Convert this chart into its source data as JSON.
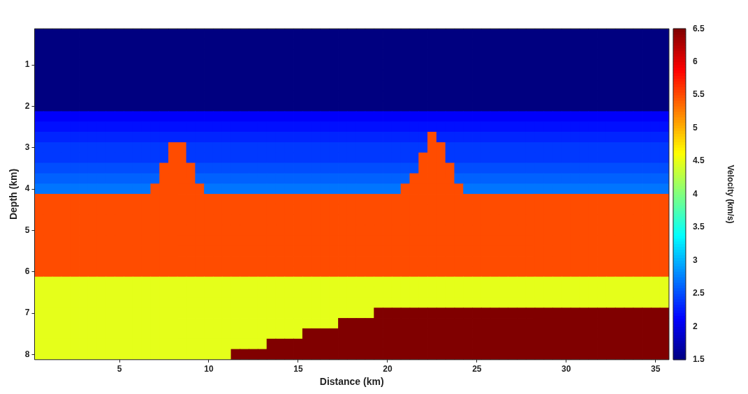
{
  "chart_data": {
    "type": "heatmap",
    "xlabel": "Distance (km)",
    "ylabel": "Depth (km)",
    "clabel": "Velocity (km/s)",
    "categories": [
      null,
      null,
      null,
      null,
      null,
      null,
      null,
      null,
      null,
      "5",
      null,
      null,
      null,
      null,
      null,
      null,
      null,
      null,
      null,
      "10",
      null,
      null,
      null,
      null,
      null,
      null,
      null,
      null,
      null,
      "15",
      null,
      null,
      null,
      null,
      null,
      null,
      null,
      null,
      null,
      "20",
      null,
      null,
      null,
      null,
      null,
      null,
      null,
      null,
      null,
      "25",
      null,
      null,
      null,
      null,
      null,
      null,
      null,
      null,
      null,
      "30",
      null,
      null,
      null,
      null,
      null,
      null,
      null,
      null,
      null,
      "35",
      null
    ],
    "y_categories": [
      null,
      null,
      null,
      "1",
      null,
      null,
      null,
      "2",
      null,
      null,
      null,
      "3",
      null,
      null,
      null,
      "4",
      null,
      null,
      null,
      "5",
      null,
      null,
      null,
      "6",
      null,
      null,
      null,
      "7",
      null,
      null,
      null,
      "8"
    ],
    "clim": [
      1.5,
      6.5
    ],
    "cticks": [
      1.5,
      2,
      2.5,
      3,
      3.5,
      4,
      4.5,
      5,
      5.5,
      6,
      6.5
    ],
    "cells": [
      [
        1.5,
        1.5,
        1.5,
        1.5,
        1.5,
        1.5,
        1.5,
        1.5,
        1.5,
        1.5,
        1.5,
        1.5,
        1.5,
        1.5,
        1.5,
        1.5,
        1.5,
        1.5,
        1.5,
        1.5,
        1.5,
        1.5,
        1.5,
        1.5,
        1.5,
        1.5,
        1.5,
        1.5,
        1.5,
        1.5,
        1.5,
        1.5,
        1.5,
        1.5,
        1.5,
        1.5,
        1.5,
        1.5,
        1.5,
        1.5,
        1.5,
        1.5,
        1.5,
        1.5,
        1.5,
        1.5,
        1.5,
        1.5,
        1.5,
        1.5,
        1.5,
        1.5,
        1.5,
        1.5,
        1.5,
        1.5,
        1.5,
        1.5,
        1.5,
        1.5,
        1.5,
        1.5,
        1.5,
        1.5,
        1.5,
        1.5,
        1.5,
        1.5,
        1.5,
        1.5,
        1.5
      ],
      [
        1.5,
        1.5,
        1.5,
        1.5,
        1.5,
        1.5,
        1.5,
        1.5,
        1.5,
        1.5,
        1.5,
        1.5,
        1.5,
        1.5,
        1.5,
        1.5,
        1.5,
        1.5,
        1.5,
        1.5,
        1.5,
        1.5,
        1.5,
        1.5,
        1.5,
        1.5,
        1.5,
        1.5,
        1.5,
        1.5,
        1.5,
        1.5,
        1.5,
        1.5,
        1.5,
        1.5,
        1.5,
        1.5,
        1.5,
        1.5,
        1.5,
        1.5,
        1.5,
        1.5,
        1.5,
        1.5,
        1.5,
        1.5,
        1.5,
        1.5,
        1.5,
        1.5,
        1.5,
        1.5,
        1.5,
        1.5,
        1.5,
        1.5,
        1.5,
        1.5,
        1.5,
        1.5,
        1.5,
        1.5,
        1.5,
        1.5,
        1.5,
        1.5,
        1.5,
        1.5,
        1.5
      ],
      [
        1.5,
        1.5,
        1.5,
        1.5,
        1.5,
        1.5,
        1.5,
        1.5,
        1.5,
        1.5,
        1.5,
        1.5,
        1.5,
        1.5,
        1.5,
        1.5,
        1.5,
        1.5,
        1.5,
        1.5,
        1.5,
        1.5,
        1.5,
        1.5,
        1.5,
        1.5,
        1.5,
        1.5,
        1.5,
        1.5,
        1.5,
        1.5,
        1.5,
        1.5,
        1.5,
        1.5,
        1.5,
        1.5,
        1.5,
        1.5,
        1.5,
        1.5,
        1.5,
        1.5,
        1.5,
        1.5,
        1.5,
        1.5,
        1.5,
        1.5,
        1.5,
        1.5,
        1.5,
        1.5,
        1.5,
        1.5,
        1.5,
        1.5,
        1.5,
        1.5,
        1.5,
        1.5,
        1.5,
        1.5,
        1.5,
        1.5,
        1.5,
        1.5,
        1.5,
        1.5,
        1.5
      ],
      [
        1.5,
        1.5,
        1.5,
        1.5,
        1.5,
        1.5,
        1.5,
        1.5,
        1.5,
        1.5,
        1.5,
        1.5,
        1.5,
        1.5,
        1.5,
        1.5,
        1.5,
        1.5,
        1.5,
        1.5,
        1.5,
        1.5,
        1.5,
        1.5,
        1.5,
        1.5,
        1.5,
        1.5,
        1.5,
        1.5,
        1.5,
        1.5,
        1.5,
        1.5,
        1.5,
        1.5,
        1.5,
        1.5,
        1.5,
        1.5,
        1.5,
        1.5,
        1.5,
        1.5,
        1.5,
        1.5,
        1.5,
        1.5,
        1.5,
        1.5,
        1.5,
        1.5,
        1.5,
        1.5,
        1.5,
        1.5,
        1.5,
        1.5,
        1.5,
        1.5,
        1.5,
        1.5,
        1.5,
        1.5,
        1.5,
        1.5,
        1.5,
        1.5,
        1.5,
        1.5,
        1.5
      ],
      [
        1.5,
        1.5,
        1.5,
        1.5,
        1.5,
        1.5,
        1.5,
        1.5,
        1.5,
        1.5,
        1.5,
        1.5,
        1.5,
        1.5,
        1.5,
        1.5,
        1.5,
        1.5,
        1.5,
        1.5,
        1.5,
        1.5,
        1.5,
        1.5,
        1.5,
        1.5,
        1.5,
        1.5,
        1.5,
        1.5,
        1.5,
        1.5,
        1.5,
        1.5,
        1.5,
        1.5,
        1.5,
        1.5,
        1.5,
        1.5,
        1.5,
        1.5,
        1.5,
        1.5,
        1.5,
        1.5,
        1.5,
        1.5,
        1.5,
        1.5,
        1.5,
        1.5,
        1.5,
        1.5,
        1.5,
        1.5,
        1.5,
        1.5,
        1.5,
        1.5,
        1.5,
        1.5,
        1.5,
        1.5,
        1.5,
        1.5,
        1.5,
        1.5,
        1.5,
        1.5,
        1.5
      ],
      [
        1.5,
        1.5,
        1.5,
        1.5,
        1.5,
        1.5,
        1.5,
        1.5,
        1.5,
        1.5,
        1.5,
        1.5,
        1.5,
        1.5,
        1.5,
        1.5,
        1.5,
        1.5,
        1.5,
        1.5,
        1.5,
        1.5,
        1.5,
        1.5,
        1.5,
        1.5,
        1.5,
        1.5,
        1.5,
        1.5,
        1.5,
        1.5,
        1.5,
        1.5,
        1.5,
        1.5,
        1.5,
        1.5,
        1.5,
        1.5,
        1.5,
        1.5,
        1.5,
        1.5,
        1.5,
        1.5,
        1.5,
        1.5,
        1.5,
        1.5,
        1.5,
        1.5,
        1.5,
        1.5,
        1.5,
        1.5,
        1.5,
        1.5,
        1.5,
        1.5,
        1.5,
        1.5,
        1.5,
        1.5,
        1.5,
        1.5,
        1.5,
        1.5,
        1.5,
        1.5,
        1.5
      ],
      [
        1.5,
        1.5,
        1.5,
        1.5,
        1.5,
        1.5,
        1.5,
        1.5,
        1.5,
        1.5,
        1.5,
        1.5,
        1.5,
        1.5,
        1.5,
        1.5,
        1.5,
        1.5,
        1.5,
        1.5,
        1.5,
        1.5,
        1.5,
        1.5,
        1.5,
        1.5,
        1.5,
        1.5,
        1.5,
        1.5,
        1.5,
        1.5,
        1.5,
        1.5,
        1.5,
        1.5,
        1.5,
        1.5,
        1.5,
        1.5,
        1.5,
        1.5,
        1.5,
        1.5,
        1.5,
        1.5,
        1.5,
        1.5,
        1.5,
        1.5,
        1.5,
        1.5,
        1.5,
        1.5,
        1.5,
        1.5,
        1.5,
        1.5,
        1.5,
        1.5,
        1.5,
        1.5,
        1.5,
        1.5,
        1.5,
        1.5,
        1.5,
        1.5,
        1.5,
        1.5,
        1.5
      ],
      [
        1.5,
        1.5,
        1.5,
        1.5,
        1.5,
        1.5,
        1.5,
        1.5,
        1.5,
        1.5,
        1.5,
        1.5,
        1.5,
        1.5,
        1.5,
        1.5,
        1.5,
        1.5,
        1.5,
        1.5,
        1.5,
        1.5,
        1.5,
        1.5,
        1.5,
        1.5,
        1.5,
        1.5,
        1.5,
        1.5,
        1.5,
        1.5,
        1.5,
        1.5,
        1.5,
        1.5,
        1.5,
        1.5,
        1.5,
        1.5,
        1.5,
        1.5,
        1.5,
        1.5,
        1.5,
        1.5,
        1.5,
        1.5,
        1.5,
        1.5,
        1.5,
        1.5,
        1.5,
        1.5,
        1.5,
        1.5,
        1.5,
        1.5,
        1.5,
        1.5,
        1.5,
        1.5,
        1.5,
        1.5,
        1.5,
        1.5,
        1.5,
        1.5,
        1.5,
        1.5,
        1.5
      ],
      [
        2.1,
        2.1,
        2.1,
        2.1,
        2.1,
        2.1,
        2.1,
        2.1,
        2.1,
        2.1,
        2.1,
        2.1,
        2.1,
        2.1,
        2.1,
        2.1,
        2.1,
        2.1,
        2.1,
        2.1,
        2.1,
        2.1,
        2.1,
        2.1,
        2.1,
        2.1,
        2.1,
        2.1,
        2.1,
        2.1,
        2.1,
        2.1,
        2.1,
        2.1,
        2.1,
        2.1,
        2.1,
        2.1,
        2.1,
        2.1,
        2.1,
        2.1,
        2.1,
        2.1,
        2.1,
        2.1,
        2.1,
        2.1,
        2.1,
        2.1,
        2.1,
        2.1,
        2.1,
        2.1,
        2.1,
        2.1,
        2.1,
        2.1,
        2.1,
        2.1,
        2.1,
        2.1,
        2.1,
        2.1,
        2.1,
        2.1,
        2.1,
        2.1,
        2.1,
        2.1,
        2.1
      ],
      [
        2.2,
        2.2,
        2.2,
        2.2,
        2.2,
        2.2,
        2.2,
        2.2,
        2.2,
        2.2,
        2.2,
        2.2,
        2.2,
        2.2,
        2.2,
        2.2,
        2.2,
        2.2,
        2.2,
        2.2,
        2.2,
        2.2,
        2.2,
        2.2,
        2.2,
        2.2,
        2.2,
        2.2,
        2.2,
        2.2,
        2.2,
        2.2,
        2.2,
        2.2,
        2.2,
        2.2,
        2.2,
        2.2,
        2.2,
        2.2,
        2.2,
        2.2,
        2.2,
        2.2,
        2.2,
        2.2,
        2.2,
        2.2,
        2.2,
        2.2,
        2.2,
        2.2,
        2.2,
        2.2,
        2.2,
        2.2,
        2.2,
        2.2,
        2.2,
        2.2,
        2.2,
        2.2,
        2.2,
        2.2,
        2.2,
        2.2,
        2.2,
        2.2,
        2.2,
        2.2,
        2.2
      ],
      [
        2.3,
        2.3,
        2.3,
        2.3,
        2.3,
        2.3,
        2.3,
        2.3,
        2.3,
        2.3,
        2.3,
        2.3,
        2.3,
        2.3,
        2.3,
        2.3,
        2.3,
        2.3,
        2.3,
        2.3,
        2.3,
        2.3,
        2.3,
        2.3,
        2.3,
        2.3,
        2.3,
        2.3,
        2.3,
        2.3,
        2.3,
        2.3,
        2.3,
        2.3,
        2.3,
        2.3,
        2.3,
        2.3,
        2.3,
        2.3,
        2.3,
        2.3,
        2.3,
        2.3,
        5.5,
        2.3,
        2.3,
        2.3,
        2.3,
        2.3,
        2.3,
        2.3,
        2.3,
        2.3,
        2.3,
        2.3,
        2.3,
        2.3,
        2.3,
        2.3,
        2.3,
        2.3,
        2.3,
        2.3,
        2.3,
        2.3,
        2.3,
        2.3,
        2.3,
        2.3,
        2.3
      ],
      [
        2.4,
        2.4,
        2.4,
        2.4,
        2.4,
        2.4,
        2.4,
        2.4,
        2.4,
        2.4,
        2.4,
        2.4,
        2.4,
        2.4,
        2.4,
        5.5,
        5.5,
        2.4,
        2.4,
        2.4,
        2.4,
        2.4,
        2.4,
        2.4,
        2.4,
        2.4,
        2.4,
        2.4,
        2.4,
        2.4,
        2.4,
        2.4,
        2.4,
        2.4,
        2.4,
        2.4,
        2.4,
        2.4,
        2.4,
        2.4,
        2.4,
        2.4,
        2.4,
        2.4,
        5.5,
        5.5,
        2.4,
        2.4,
        2.4,
        2.4,
        2.4,
        2.4,
        2.4,
        2.4,
        2.4,
        2.4,
        2.4,
        2.4,
        2.4,
        2.4,
        2.4,
        2.4,
        2.4,
        2.4,
        2.4,
        2.4,
        2.4,
        2.4,
        2.4,
        2.4,
        2.4
      ],
      [
        2.4,
        2.4,
        2.4,
        2.4,
        2.4,
        2.4,
        2.4,
        2.4,
        2.4,
        2.4,
        2.4,
        2.4,
        2.4,
        2.4,
        2.4,
        5.5,
        5.5,
        2.4,
        2.4,
        2.4,
        2.4,
        2.4,
        2.4,
        2.4,
        2.4,
        2.4,
        2.4,
        2.4,
        2.4,
        2.4,
        2.4,
        2.4,
        2.4,
        2.4,
        2.4,
        2.4,
        2.4,
        2.4,
        2.4,
        2.4,
        2.4,
        2.4,
        2.4,
        5.5,
        5.5,
        5.5,
        2.4,
        2.4,
        2.4,
        2.4,
        2.4,
        2.4,
        2.4,
        2.4,
        2.4,
        2.4,
        2.4,
        2.4,
        2.4,
        2.4,
        2.4,
        2.4,
        2.4,
        2.4,
        2.4,
        2.4,
        2.4,
        2.4,
        2.4,
        2.4,
        2.4
      ],
      [
        2.5,
        2.5,
        2.5,
        2.5,
        2.5,
        2.5,
        2.5,
        2.5,
        2.5,
        2.5,
        2.5,
        2.5,
        2.5,
        2.5,
        5.5,
        5.5,
        5.5,
        5.5,
        2.5,
        2.5,
        2.5,
        2.5,
        2.5,
        2.5,
        2.5,
        2.5,
        2.5,
        2.5,
        2.5,
        2.5,
        2.5,
        2.5,
        2.5,
        2.5,
        2.5,
        2.5,
        2.5,
        2.5,
        2.5,
        2.5,
        2.5,
        2.5,
        2.5,
        5.5,
        5.5,
        5.5,
        5.5,
        2.5,
        2.5,
        2.5,
        2.5,
        2.5,
        2.5,
        2.5,
        2.5,
        2.5,
        2.5,
        2.5,
        2.5,
        2.5,
        2.5,
        2.5,
        2.5,
        2.5,
        2.5,
        2.5,
        2.5,
        2.5,
        2.5,
        2.5,
        2.5
      ],
      [
        2.6,
        2.6,
        2.6,
        2.6,
        2.6,
        2.6,
        2.6,
        2.6,
        2.6,
        2.6,
        2.6,
        2.6,
        2.6,
        2.6,
        5.5,
        5.5,
        5.5,
        5.5,
        2.6,
        2.6,
        2.6,
        2.6,
        2.6,
        2.6,
        2.6,
        2.6,
        2.6,
        2.6,
        2.6,
        2.6,
        2.6,
        2.6,
        2.6,
        2.6,
        2.6,
        2.6,
        2.6,
        2.6,
        2.6,
        2.6,
        2.6,
        2.6,
        5.5,
        5.5,
        5.5,
        5.5,
        5.5,
        2.6,
        2.6,
        2.6,
        2.6,
        2.6,
        2.6,
        2.6,
        2.6,
        2.6,
        2.6,
        2.6,
        2.6,
        2.6,
        2.6,
        2.6,
        2.6,
        2.6,
        2.6,
        2.6,
        2.6,
        2.6,
        2.6,
        2.6,
        2.6
      ],
      [
        2.7,
        2.7,
        2.7,
        2.7,
        2.7,
        2.7,
        2.7,
        2.7,
        2.7,
        2.7,
        2.7,
        2.7,
        2.7,
        5.5,
        5.5,
        5.5,
        5.5,
        5.5,
        5.5,
        2.7,
        2.7,
        2.7,
        2.7,
        2.7,
        2.7,
        2.7,
        2.7,
        2.7,
        2.7,
        2.7,
        2.7,
        2.7,
        2.7,
        2.7,
        2.7,
        2.7,
        2.7,
        2.7,
        2.7,
        2.7,
        2.7,
        5.5,
        5.5,
        5.5,
        5.5,
        5.5,
        5.5,
        5.5,
        2.7,
        2.7,
        2.7,
        2.7,
        2.7,
        2.7,
        2.7,
        2.7,
        2.7,
        2.7,
        2.7,
        2.7,
        2.7,
        2.7,
        2.7,
        2.7,
        2.7,
        2.7,
        2.7,
        2.7,
        2.7,
        2.7,
        2.7
      ],
      [
        5.5,
        5.5,
        5.5,
        5.5,
        5.5,
        5.5,
        5.5,
        5.5,
        5.5,
        5.5,
        5.5,
        5.5,
        5.5,
        5.5,
        5.5,
        5.5,
        5.5,
        5.5,
        5.5,
        5.5,
        5.5,
        5.5,
        5.5,
        5.5,
        5.5,
        5.5,
        5.5,
        5.5,
        5.5,
        5.5,
        5.5,
        5.5,
        5.5,
        5.5,
        5.5,
        5.5,
        5.5,
        5.5,
        5.5,
        5.5,
        5.5,
        5.5,
        5.5,
        5.5,
        5.5,
        5.5,
        5.5,
        5.5,
        5.5,
        5.5,
        5.5,
        5.5,
        5.5,
        5.5,
        5.5,
        5.5,
        5.5,
        5.5,
        5.5,
        5.5,
        5.5,
        5.5,
        5.5,
        5.5,
        5.5,
        5.5,
        5.5,
        5.5,
        5.5,
        5.5,
        5.5
      ],
      [
        5.5,
        5.5,
        5.5,
        5.5,
        5.5,
        5.5,
        5.5,
        5.5,
        5.5,
        5.5,
        5.5,
        5.5,
        5.5,
        5.5,
        5.5,
        5.5,
        5.5,
        5.5,
        5.5,
        5.5,
        5.5,
        5.5,
        5.5,
        5.5,
        5.5,
        5.5,
        5.5,
        5.5,
        5.5,
        5.5,
        5.5,
        5.5,
        5.5,
        5.5,
        5.5,
        5.5,
        5.5,
        5.5,
        5.5,
        5.5,
        5.5,
        5.5,
        5.5,
        5.5,
        5.5,
        5.5,
        5.5,
        5.5,
        5.5,
        5.5,
        5.5,
        5.5,
        5.5,
        5.5,
        5.5,
        5.5,
        5.5,
        5.5,
        5.5,
        5.5,
        5.5,
        5.5,
        5.5,
        5.5,
        5.5,
        5.5,
        5.5,
        5.5,
        5.5,
        5.5,
        5.5
      ],
      [
        5.5,
        5.5,
        5.5,
        5.5,
        5.5,
        5.5,
        5.5,
        5.5,
        5.5,
        5.5,
        5.5,
        5.5,
        5.5,
        5.5,
        5.5,
        5.5,
        5.5,
        5.5,
        5.5,
        5.5,
        5.5,
        5.5,
        5.5,
        5.5,
        5.5,
        5.5,
        5.5,
        5.5,
        5.5,
        5.5,
        5.5,
        5.5,
        5.5,
        5.5,
        5.5,
        5.5,
        5.5,
        5.5,
        5.5,
        5.5,
        5.5,
        5.5,
        5.5,
        5.5,
        5.5,
        5.5,
        5.5,
        5.5,
        5.5,
        5.5,
        5.5,
        5.5,
        5.5,
        5.5,
        5.5,
        5.5,
        5.5,
        5.5,
        5.5,
        5.5,
        5.5,
        5.5,
        5.5,
        5.5,
        5.5,
        5.5,
        5.5,
        5.5,
        5.5,
        5.5,
        5.5
      ],
      [
        5.5,
        5.5,
        5.5,
        5.5,
        5.5,
        5.5,
        5.5,
        5.5,
        5.5,
        5.5,
        5.5,
        5.5,
        5.5,
        5.5,
        5.5,
        5.5,
        5.5,
        5.5,
        5.5,
        5.5,
        5.5,
        5.5,
        5.5,
        5.5,
        5.5,
        5.5,
        5.5,
        5.5,
        5.5,
        5.5,
        5.5,
        5.5,
        5.5,
        5.5,
        5.5,
        5.5,
        5.5,
        5.5,
        5.5,
        5.5,
        5.5,
        5.5,
        5.5,
        5.5,
        5.5,
        5.5,
        5.5,
        5.5,
        5.5,
        5.5,
        5.5,
        5.5,
        5.5,
        5.5,
        5.5,
        5.5,
        5.5,
        5.5,
        5.5,
        5.5,
        5.5,
        5.5,
        5.5,
        5.5,
        5.5,
        5.5,
        5.5,
        5.5,
        5.5,
        5.5,
        5.5
      ],
      [
        5.5,
        5.5,
        5.5,
        5.5,
        5.5,
        5.5,
        5.5,
        5.5,
        5.5,
        5.5,
        5.5,
        5.5,
        5.5,
        5.5,
        5.5,
        5.5,
        5.5,
        5.5,
        5.5,
        5.5,
        5.5,
        5.5,
        5.5,
        5.5,
        5.5,
        5.5,
        5.5,
        5.5,
        5.5,
        5.5,
        5.5,
        5.5,
        5.5,
        5.5,
        5.5,
        5.5,
        5.5,
        5.5,
        5.5,
        5.5,
        5.5,
        5.5,
        5.5,
        5.5,
        5.5,
        5.5,
        5.5,
        5.5,
        5.5,
        5.5,
        5.5,
        5.5,
        5.5,
        5.5,
        5.5,
        5.5,
        5.5,
        5.5,
        5.5,
        5.5,
        5.5,
        5.5,
        5.5,
        5.5,
        5.5,
        5.5,
        5.5,
        5.5,
        5.5,
        5.5,
        5.5
      ],
      [
        5.5,
        5.5,
        5.5,
        5.5,
        5.5,
        5.5,
        5.5,
        5.5,
        5.5,
        5.5,
        5.5,
        5.5,
        5.5,
        5.5,
        5.5,
        5.5,
        5.5,
        5.5,
        5.5,
        5.5,
        5.5,
        5.5,
        5.5,
        5.5,
        5.5,
        5.5,
        5.5,
        5.5,
        5.5,
        5.5,
        5.5,
        5.5,
        5.5,
        5.5,
        5.5,
        5.5,
        5.5,
        5.5,
        5.5,
        5.5,
        5.5,
        5.5,
        5.5,
        5.5,
        5.5,
        5.5,
        5.5,
        5.5,
        5.5,
        5.5,
        5.5,
        5.5,
        5.5,
        5.5,
        5.5,
        5.5,
        5.5,
        5.5,
        5.5,
        5.5,
        5.5,
        5.5,
        5.5,
        5.5,
        5.5,
        5.5,
        5.5,
        5.5,
        5.5,
        5.5,
        5.5
      ],
      [
        5.5,
        5.5,
        5.5,
        5.5,
        5.5,
        5.5,
        5.5,
        5.5,
        5.5,
        5.5,
        5.5,
        5.5,
        5.5,
        5.5,
        5.5,
        5.5,
        5.5,
        5.5,
        5.5,
        5.5,
        5.5,
        5.5,
        5.5,
        5.5,
        5.5,
        5.5,
        5.5,
        5.5,
        5.5,
        5.5,
        5.5,
        5.5,
        5.5,
        5.5,
        5.5,
        5.5,
        5.5,
        5.5,
        5.5,
        5.5,
        5.5,
        5.5,
        5.5,
        5.5,
        5.5,
        5.5,
        5.5,
        5.5,
        5.5,
        5.5,
        5.5,
        5.5,
        5.5,
        5.5,
        5.5,
        5.5,
        5.5,
        5.5,
        5.5,
        5.5,
        5.5,
        5.5,
        5.5,
        5.5,
        5.5,
        5.5,
        5.5,
        5.5,
        5.5,
        5.5,
        5.5
      ],
      [
        5.5,
        5.5,
        5.5,
        5.5,
        5.5,
        5.5,
        5.5,
        5.5,
        5.5,
        5.5,
        5.5,
        5.5,
        5.5,
        5.5,
        5.5,
        5.5,
        5.5,
        5.5,
        5.5,
        5.5,
        5.5,
        5.5,
        5.5,
        5.5,
        5.5,
        5.5,
        5.5,
        5.5,
        5.5,
        5.5,
        5.5,
        5.5,
        5.5,
        5.5,
        5.5,
        5.5,
        5.5,
        5.5,
        5.5,
        5.5,
        5.5,
        5.5,
        5.5,
        5.5,
        5.5,
        5.5,
        5.5,
        5.5,
        5.5,
        5.5,
        5.5,
        5.5,
        5.5,
        5.5,
        5.5,
        5.5,
        5.5,
        5.5,
        5.5,
        5.5,
        5.5,
        5.5,
        5.5,
        5.5,
        5.5,
        5.5,
        5.5,
        5.5,
        5.5,
        5.5,
        5.5
      ],
      [
        4.5,
        4.5,
        4.5,
        4.5,
        4.5,
        4.5,
        4.5,
        4.5,
        4.5,
        4.5,
        4.5,
        4.5,
        4.5,
        4.5,
        4.5,
        4.5,
        4.5,
        4.5,
        4.5,
        4.5,
        4.5,
        4.5,
        4.5,
        4.5,
        4.5,
        4.5,
        4.5,
        4.5,
        4.5,
        4.5,
        4.5,
        4.5,
        4.5,
        4.5,
        4.5,
        4.5,
        4.5,
        4.5,
        4.5,
        4.5,
        4.5,
        4.5,
        4.5,
        4.5,
        4.5,
        4.5,
        4.5,
        4.5,
        4.5,
        4.5,
        4.5,
        4.5,
        4.5,
        4.5,
        4.5,
        4.5,
        4.5,
        4.5,
        4.5,
        4.5,
        4.5,
        4.5,
        4.5,
        4.5,
        4.5,
        4.5,
        4.5,
        4.5,
        4.5,
        4.5,
        4.5
      ],
      [
        4.5,
        4.5,
        4.5,
        4.5,
        4.5,
        4.5,
        4.5,
        4.5,
        4.5,
        4.5,
        4.5,
        4.5,
        4.5,
        4.5,
        4.5,
        4.5,
        4.5,
        4.5,
        4.5,
        4.5,
        4.5,
        4.5,
        4.5,
        4.5,
        4.5,
        4.5,
        4.5,
        4.5,
        4.5,
        4.5,
        4.5,
        4.5,
        4.5,
        4.5,
        4.5,
        4.5,
        4.5,
        4.5,
        4.5,
        4.5,
        4.5,
        4.5,
        4.5,
        4.5,
        4.5,
        4.5,
        4.5,
        4.5,
        4.5,
        4.5,
        4.5,
        4.5,
        4.5,
        4.5,
        4.5,
        4.5,
        4.5,
        4.5,
        4.5,
        4.5,
        4.5,
        4.5,
        4.5,
        4.5,
        4.5,
        4.5,
        4.5,
        4.5,
        4.5,
        4.5,
        4.5
      ],
      [
        4.5,
        4.5,
        4.5,
        4.5,
        4.5,
        4.5,
        4.5,
        4.5,
        4.5,
        4.5,
        4.5,
        4.5,
        4.5,
        4.5,
        4.5,
        4.5,
        4.5,
        4.5,
        4.5,
        4.5,
        4.5,
        4.5,
        4.5,
        4.5,
        4.5,
        4.5,
        4.5,
        4.5,
        4.5,
        4.5,
        4.5,
        4.5,
        4.5,
        4.5,
        4.5,
        4.5,
        4.5,
        4.5,
        4.5,
        4.5,
        4.5,
        4.5,
        4.5,
        4.5,
        4.5,
        4.5,
        4.5,
        4.5,
        4.5,
        4.5,
        4.5,
        4.5,
        4.5,
        4.5,
        4.5,
        4.5,
        4.5,
        4.5,
        4.5,
        4.5,
        4.5,
        4.5,
        4.5,
        4.5,
        4.5,
        4.5,
        4.5,
        4.5,
        4.5,
        4.5,
        4.5
      ],
      [
        4.5,
        4.5,
        4.5,
        4.5,
        4.5,
        4.5,
        4.5,
        4.5,
        4.5,
        4.5,
        4.5,
        4.5,
        4.5,
        4.5,
        4.5,
        4.5,
        4.5,
        4.5,
        4.5,
        4.5,
        4.5,
        4.5,
        4.5,
        4.5,
        4.5,
        4.5,
        4.5,
        4.5,
        4.5,
        4.5,
        4.5,
        4.5,
        4.5,
        4.5,
        4.5,
        4.5,
        4.5,
        4.5,
        6.5,
        6.5,
        6.5,
        6.5,
        6.5,
        6.5,
        6.5,
        6.5,
        6.5,
        6.5,
        6.5,
        6.5,
        6.5,
        6.5,
        6.5,
        6.5,
        6.5,
        6.5,
        6.5,
        6.5,
        6.5,
        6.5,
        6.5,
        6.5,
        6.5,
        6.5,
        6.5,
        6.5,
        6.5,
        6.5,
        6.5,
        6.5,
        6.5
      ],
      [
        4.5,
        4.5,
        4.5,
        4.5,
        4.5,
        4.5,
        4.5,
        4.5,
        4.5,
        4.5,
        4.5,
        4.5,
        4.5,
        4.5,
        4.5,
        4.5,
        4.5,
        4.5,
        4.5,
        4.5,
        4.5,
        4.5,
        4.5,
        4.5,
        4.5,
        4.5,
        4.5,
        4.5,
        4.5,
        4.5,
        4.5,
        4.5,
        4.5,
        4.5,
        6.5,
        6.5,
        6.5,
        6.5,
        6.5,
        6.5,
        6.5,
        6.5,
        6.5,
        6.5,
        6.5,
        6.5,
        6.5,
        6.5,
        6.5,
        6.5,
        6.5,
        6.5,
        6.5,
        6.5,
        6.5,
        6.5,
        6.5,
        6.5,
        6.5,
        6.5,
        6.5,
        6.5,
        6.5,
        6.5,
        6.5,
        6.5,
        6.5,
        6.5,
        6.5,
        6.5,
        6.5
      ],
      [
        4.5,
        4.5,
        4.5,
        4.5,
        4.5,
        4.5,
        4.5,
        4.5,
        4.5,
        4.5,
        4.5,
        4.5,
        4.5,
        4.5,
        4.5,
        4.5,
        4.5,
        4.5,
        4.5,
        4.5,
        4.5,
        4.5,
        4.5,
        4.5,
        4.5,
        4.5,
        4.5,
        4.5,
        4.5,
        4.5,
        6.5,
        6.5,
        6.5,
        6.5,
        6.5,
        6.5,
        6.5,
        6.5,
        6.5,
        6.5,
        6.5,
        6.5,
        6.5,
        6.5,
        6.5,
        6.5,
        6.5,
        6.5,
        6.5,
        6.5,
        6.5,
        6.5,
        6.5,
        6.5,
        6.5,
        6.5,
        6.5,
        6.5,
        6.5,
        6.5,
        6.5,
        6.5,
        6.5,
        6.5,
        6.5,
        6.5,
        6.5,
        6.5,
        6.5,
        6.5,
        6.5
      ],
      [
        4.5,
        4.5,
        4.5,
        4.5,
        4.5,
        4.5,
        4.5,
        4.5,
        4.5,
        4.5,
        4.5,
        4.5,
        4.5,
        4.5,
        4.5,
        4.5,
        4.5,
        4.5,
        4.5,
        4.5,
        4.5,
        4.5,
        4.5,
        4.5,
        4.5,
        4.5,
        6.5,
        6.5,
        6.5,
        6.5,
        6.5,
        6.5,
        6.5,
        6.5,
        6.5,
        6.5,
        6.5,
        6.5,
        6.5,
        6.5,
        6.5,
        6.5,
        6.5,
        6.5,
        6.5,
        6.5,
        6.5,
        6.5,
        6.5,
        6.5,
        6.5,
        6.5,
        6.5,
        6.5,
        6.5,
        6.5,
        6.5,
        6.5,
        6.5,
        6.5,
        6.5,
        6.5,
        6.5,
        6.5,
        6.5,
        6.5,
        6.5,
        6.5,
        6.5,
        6.5,
        6.5
      ],
      [
        4.5,
        4.5,
        4.5,
        4.5,
        4.5,
        4.5,
        4.5,
        4.5,
        4.5,
        4.5,
        4.5,
        4.5,
        4.5,
        4.5,
        4.5,
        4.5,
        4.5,
        4.5,
        4.5,
        4.5,
        4.5,
        4.5,
        6.5,
        6.5,
        6.5,
        6.5,
        6.5,
        6.5,
        6.5,
        6.5,
        6.5,
        6.5,
        6.5,
        6.5,
        6.5,
        6.5,
        6.5,
        6.5,
        6.5,
        6.5,
        6.5,
        6.5,
        6.5,
        6.5,
        6.5,
        6.5,
        6.5,
        6.5,
        6.5,
        6.5,
        6.5,
        6.5,
        6.5,
        6.5,
        6.5,
        6.5,
        6.5,
        6.5,
        6.5,
        6.5,
        6.5,
        6.5,
        6.5,
        6.5,
        6.5,
        6.5,
        6.5,
        6.5,
        6.5,
        6.5,
        6.5
      ]
    ]
  }
}
